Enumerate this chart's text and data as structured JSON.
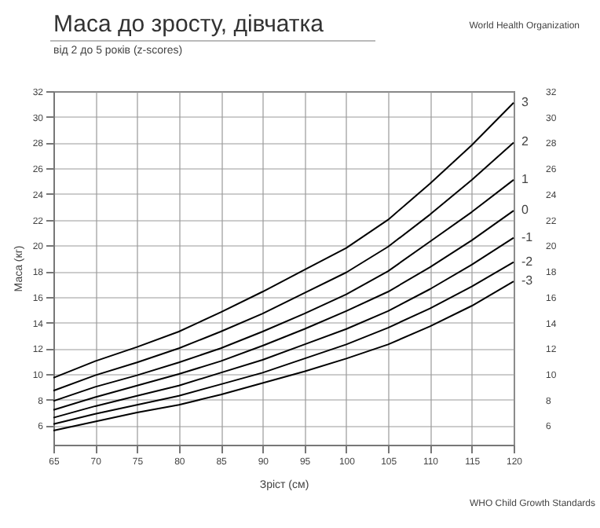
{
  "chart_data": {
    "type": "line",
    "title": "Маса до зросту, дівчатка",
    "subtitle": "від 2 до 5 років (z-scores)",
    "xlabel": "Зріст (см)",
    "ylabel": "Маса (кг)",
    "annotations": [
      "World Health Organization",
      "WHO Child Growth Standards"
    ],
    "x": [
      65,
      70,
      75,
      80,
      85,
      90,
      95,
      100,
      105,
      110,
      115,
      120
    ],
    "series": [
      {
        "name": "3",
        "color": "#000000",
        "values": [
          9.7,
          11.0,
          12.1,
          13.3,
          14.8,
          16.4,
          18.1,
          19.8,
          22.0,
          24.8,
          27.8,
          31.1
        ]
      },
      {
        "name": "2",
        "color": "#000000",
        "values": [
          8.7,
          9.9,
          10.9,
          12.0,
          13.3,
          14.7,
          16.3,
          17.9,
          19.9,
          22.4,
          25.1,
          28.0
        ]
      },
      {
        "name": "1",
        "color": "#000000",
        "values": [
          7.9,
          9.0,
          9.9,
          10.9,
          12.0,
          13.3,
          14.7,
          16.2,
          18.0,
          20.3,
          22.6,
          25.1
        ]
      },
      {
        "name": "0",
        "color": "#000000",
        "values": [
          7.2,
          8.2,
          9.1,
          10.0,
          11.0,
          12.2,
          13.5,
          14.9,
          16.4,
          18.3,
          20.4,
          22.7
        ]
      },
      {
        "name": "-1",
        "color": "#000000",
        "values": [
          6.6,
          7.5,
          8.3,
          9.1,
          10.1,
          11.1,
          12.3,
          13.5,
          14.9,
          16.6,
          18.5,
          20.6
        ]
      },
      {
        "name": "-2",
        "color": "#000000",
        "values": [
          6.1,
          6.9,
          7.6,
          8.3,
          9.2,
          10.1,
          11.2,
          12.3,
          13.6,
          15.1,
          16.8,
          18.7
        ]
      },
      {
        "name": "-3",
        "color": "#000000",
        "values": [
          5.6,
          6.3,
          7.0,
          7.6,
          8.4,
          9.3,
          10.2,
          11.2,
          12.3,
          13.7,
          15.3,
          17.2
        ]
      }
    ],
    "xlim": [
      65,
      120
    ],
    "xticks": [
      65,
      70,
      75,
      80,
      85,
      90,
      95,
      100,
      105,
      110,
      115,
      120
    ],
    "ylim": [
      4.5,
      32
    ],
    "yticks": [
      6,
      8,
      10,
      12,
      14,
      16,
      18,
      20,
      22,
      24,
      26,
      28,
      30,
      32
    ],
    "y2lim": [
      4.5,
      32
    ],
    "y2ticks": [
      6,
      8,
      10,
      12,
      14,
      16,
      18,
      20,
      22,
      24,
      26,
      28,
      30,
      32
    ],
    "grid": true,
    "marker": "none",
    "line_style": "solid"
  }
}
